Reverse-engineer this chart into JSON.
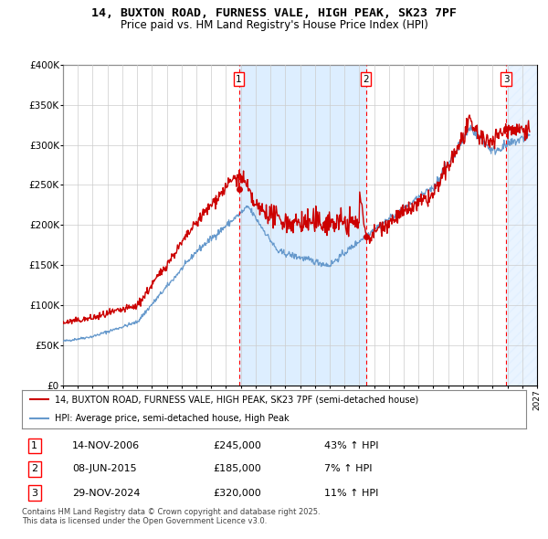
{
  "title": "14, BUXTON ROAD, FURNESS VALE, HIGH PEAK, SK23 7PF",
  "subtitle": "Price paid vs. HM Land Registry's House Price Index (HPI)",
  "legend_line1": "14, BUXTON ROAD, FURNESS VALE, HIGH PEAK, SK23 7PF (semi-detached house)",
  "legend_line2": "HPI: Average price, semi-detached house, High Peak",
  "copyright": "Contains HM Land Registry data © Crown copyright and database right 2025.\nThis data is licensed under the Open Government Licence v3.0.",
  "transactions": [
    {
      "num": 1,
      "date": "14-NOV-2006",
      "price": 245000,
      "hpi_diff": "43% ↑ HPI",
      "date_x": 2006.87
    },
    {
      "num": 2,
      "date": "08-JUN-2015",
      "price": 185000,
      "hpi_diff": "7% ↑ HPI",
      "date_x": 2015.44
    },
    {
      "num": 3,
      "date": "29-NOV-2024",
      "price": 320000,
      "hpi_diff": "11% ↑ HPI",
      "date_x": 2024.91
    }
  ],
  "hpi_color": "#6699cc",
  "price_color": "#cc0000",
  "background_color": "#ffffff",
  "grid_color": "#cccccc",
  "shading_color": "#ddeeff",
  "xmin": 1995,
  "xmax": 2027,
  "ymin": 0,
  "ymax": 400000,
  "yticks": [
    0,
    50000,
    100000,
    150000,
    200000,
    250000,
    300000,
    350000,
    400000
  ]
}
